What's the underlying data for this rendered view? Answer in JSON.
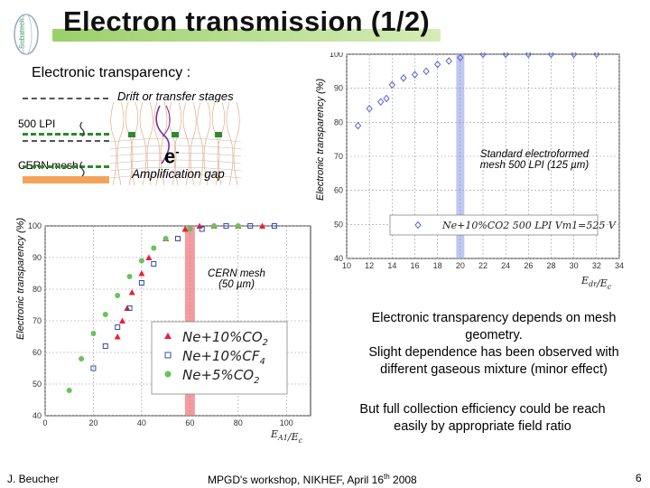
{
  "slide": {
    "title": "Electron transmission (1/2)",
    "logo_text": "Subatech",
    "subtitle": "Electronic transparency :",
    "drift_label": "Drift or transfer stages",
    "lpi_label": "500 LPI",
    "cern_mesh_label": "CERN mesh",
    "electron_label": "e",
    "electron_sup": "-",
    "amplification_label": "Amplification gap",
    "annotation_standard": [
      "Standard electroformed",
      "mesh 500 LPI  (125 µm)"
    ],
    "annotation_cern": [
      "CERN mesh",
      "(50 µm)"
    ],
    "description_1": [
      "Electronic transparency depends on mesh",
      "geometry.",
      "Slight dependence has been observed with",
      "different gaseous mixture (minor effect)"
    ],
    "description_2": [
      "But full collection efficiency could be reach",
      "easily by appropriate field ratio"
    ],
    "footer_author": "J. Beucher",
    "footer_event": "MPGD's workshop, NIKHEF,  April 16",
    "footer_event_sup": "th",
    "footer_year": " 2008",
    "page_number": "6"
  },
  "chart_data": [
    {
      "type": "scatter",
      "ylabel": "Electronic transparency (%)",
      "xlabel": "E_dr/E_c",
      "xlim": [
        10,
        34
      ],
      "ylim": [
        40,
        100
      ],
      "xticks": [
        10,
        12,
        14,
        16,
        18,
        20,
        22,
        24,
        26,
        28,
        30,
        32,
        34
      ],
      "yticks": [
        40,
        50,
        60,
        70,
        80,
        90,
        100
      ],
      "grid": true,
      "highlight_x": 20,
      "legend": "Ne+10%CO2 500 LPI Vm1=525 V",
      "series": [
        {
          "name": "Ne+10%CO2 500 LPI Vm1=525 V",
          "x": [
            11,
            12,
            13,
            13.5,
            14,
            15,
            16,
            17,
            18,
            19,
            20,
            22,
            24,
            26,
            28,
            30,
            32
          ],
          "y": [
            79,
            84,
            86,
            87,
            91,
            93,
            94,
            95,
            97,
            98,
            99,
            100,
            100,
            100,
            100,
            100,
            100
          ]
        }
      ]
    },
    {
      "type": "scatter",
      "ylabel": "Electronic transparency (%)",
      "xlabel": "E_A1/E_c",
      "xlim": [
        0,
        110
      ],
      "ylim": [
        40,
        100
      ],
      "xticks": [
        0,
        20,
        40,
        60,
        80,
        100
      ],
      "yticks": [
        40,
        50,
        60,
        70,
        80,
        90,
        100
      ],
      "grid": true,
      "highlight_x": 60,
      "series": [
        {
          "name": "Ne+10%CO2",
          "marker": "triangle",
          "color": "#e8203a",
          "x": [
            30,
            32,
            34,
            36,
            40,
            43,
            50,
            58,
            64,
            70,
            80,
            90
          ],
          "y": [
            65,
            70,
            74,
            79,
            85,
            90,
            96,
            99,
            100,
            100,
            100,
            100
          ]
        },
        {
          "name": "Ne+10%CF4",
          "marker": "square",
          "color": "#3a4aa8",
          "x": [
            20,
            25,
            30,
            35,
            40,
            45,
            55,
            65,
            75,
            85,
            95
          ],
          "y": [
            55,
            62,
            68,
            74,
            82,
            88,
            96,
            99,
            100,
            100,
            100
          ]
        },
        {
          "name": "Ne+5%CO2",
          "marker": "circle",
          "color": "#6cc060",
          "x": [
            10,
            15,
            20,
            25,
            30,
            35,
            40,
            45,
            50,
            60,
            70,
            80
          ],
          "y": [
            48,
            58,
            66,
            72,
            78,
            84,
            89,
            93,
            96,
            99,
            100,
            100
          ]
        }
      ]
    }
  ]
}
